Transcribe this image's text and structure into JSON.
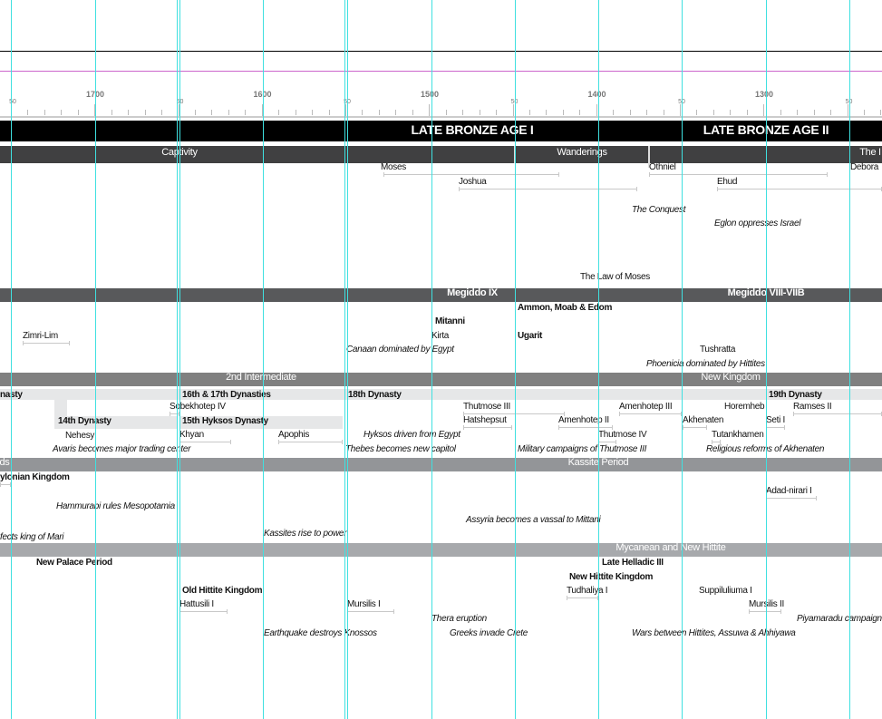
{
  "colors": {
    "guide": "#3fe0e0",
    "margin_guide": "#cc66cc",
    "era_band": "#000000",
    "bible_band": "#404041",
    "canaan_band": "#58595b",
    "egypt_band": "#808080",
    "meso_band": "#939598",
    "aegean_band": "#a7a9ac",
    "dynasty_band": "#e6e7e8"
  },
  "axis": {
    "century_labels": [
      "1700",
      "1600",
      "1500",
      "1400",
      "1300"
    ],
    "half_labels": [
      "50",
      "50",
      "50",
      "50",
      "50",
      "50"
    ]
  },
  "bands": [
    {
      "label": "LATE BRONZE AGE I"
    },
    {
      "label": "LATE BRONZE AGE II"
    },
    {
      "label": "Captivity"
    },
    {
      "label": "Wanderings"
    },
    {
      "label": "The I"
    },
    {
      "label": "Megiddo IX"
    },
    {
      "label": "Megiddo VIII-VIIB"
    },
    {
      "label": "2nd Intermediate"
    },
    {
      "label": "New Kingdom"
    },
    {
      "label": "ds"
    },
    {
      "label": "Kassite Period"
    },
    {
      "label": "Mycanean and New Hittite"
    }
  ],
  "labels": [
    "Moses",
    "Othniel",
    "Debora",
    "Joshua",
    "Ehud",
    "The Conquest",
    "Eglon oppresses Israel",
    "The Law of Moses",
    "Ammon, Moab & Edom",
    "Mitanni",
    "Kirta",
    "Ugarit",
    "Zimri-Lim",
    "Canaan dominated by Egypt",
    "Tushratta",
    "Phoenicia dominated by Hittites",
    "nasty",
    "16th & 17th Dynasties",
    "18th Dynasty",
    "19th Dynasty",
    "Sobekhotep IV",
    "Thutmose III",
    "Amenhotep III",
    "Horemheb",
    "Ramses II",
    "14th Dynasty",
    "15th Hyksos Dynasty",
    "Hatshepsut",
    "Amenhotep II",
    "Akhenaten",
    "Seti I",
    "Nehesy",
    "Khyan",
    "Apophis",
    "Hyksos driven from Egypt",
    "Thutmose IV",
    "Tutankhamen",
    "Avaris becomes major trading center",
    "Thebes becomes new capitol",
    "Military campaigns of Thutmose III",
    "Religious reforms of Akhenaten",
    "ylonian Kingdom",
    "Adad-nirari I",
    "Hammurabi rules Mesopotamia",
    "Assyria becomes a vassal to Mittani",
    "fects king of Mari",
    "Kassites rise to power",
    "New Palace Period",
    "Late Helladic III",
    "New Hittite Kingdom",
    "Old Hittite Kingdom",
    "Tudhaliya I",
    "Suppiluliuma I",
    "Hattusili I",
    "Mursilis I",
    "Mursilis II",
    "Thera eruption",
    "Piyamaradu campaign",
    "Earthquake destroys Knossos",
    "Greeks invade Crete",
    "Wars between Hittites, Assuwa & Ahhiyawa"
  ]
}
